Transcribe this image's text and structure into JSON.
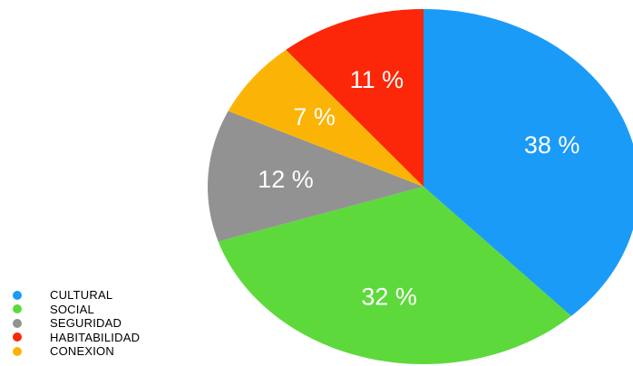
{
  "chart_data": {
    "type": "pie",
    "title": "",
    "start_angle_deg": 0,
    "direction": "clockwise",
    "slices": [
      {
        "category": "CULTURAL",
        "value": 38,
        "label": "38 %",
        "color": "#1a9bf7"
      },
      {
        "category": "SOCIAL",
        "value": 32,
        "label": "32 %",
        "color": "#5dd93c"
      },
      {
        "category": "SEGURIDAD",
        "value": 12,
        "label": "12 %",
        "color": "#929292"
      },
      {
        "category": "CONEXION",
        "value": 7,
        "label": "7 %",
        "color": "#fbb405"
      },
      {
        "category": "HABITABILIDAD",
        "value": 11,
        "label": "11 %",
        "color": "#fb2708"
      }
    ],
    "legend": {
      "position": "bottom-left",
      "entries": [
        {
          "label": "CULTURAL",
          "color": "#1a9bf7"
        },
        {
          "label": "SOCIAL",
          "color": "#5dd93c"
        },
        {
          "label": "SEGURIDAD",
          "color": "#929292"
        },
        {
          "label": "HABITABILIDAD",
          "color": "#fb2708"
        },
        {
          "label": "CONEXION",
          "color": "#fbb405"
        }
      ]
    }
  }
}
